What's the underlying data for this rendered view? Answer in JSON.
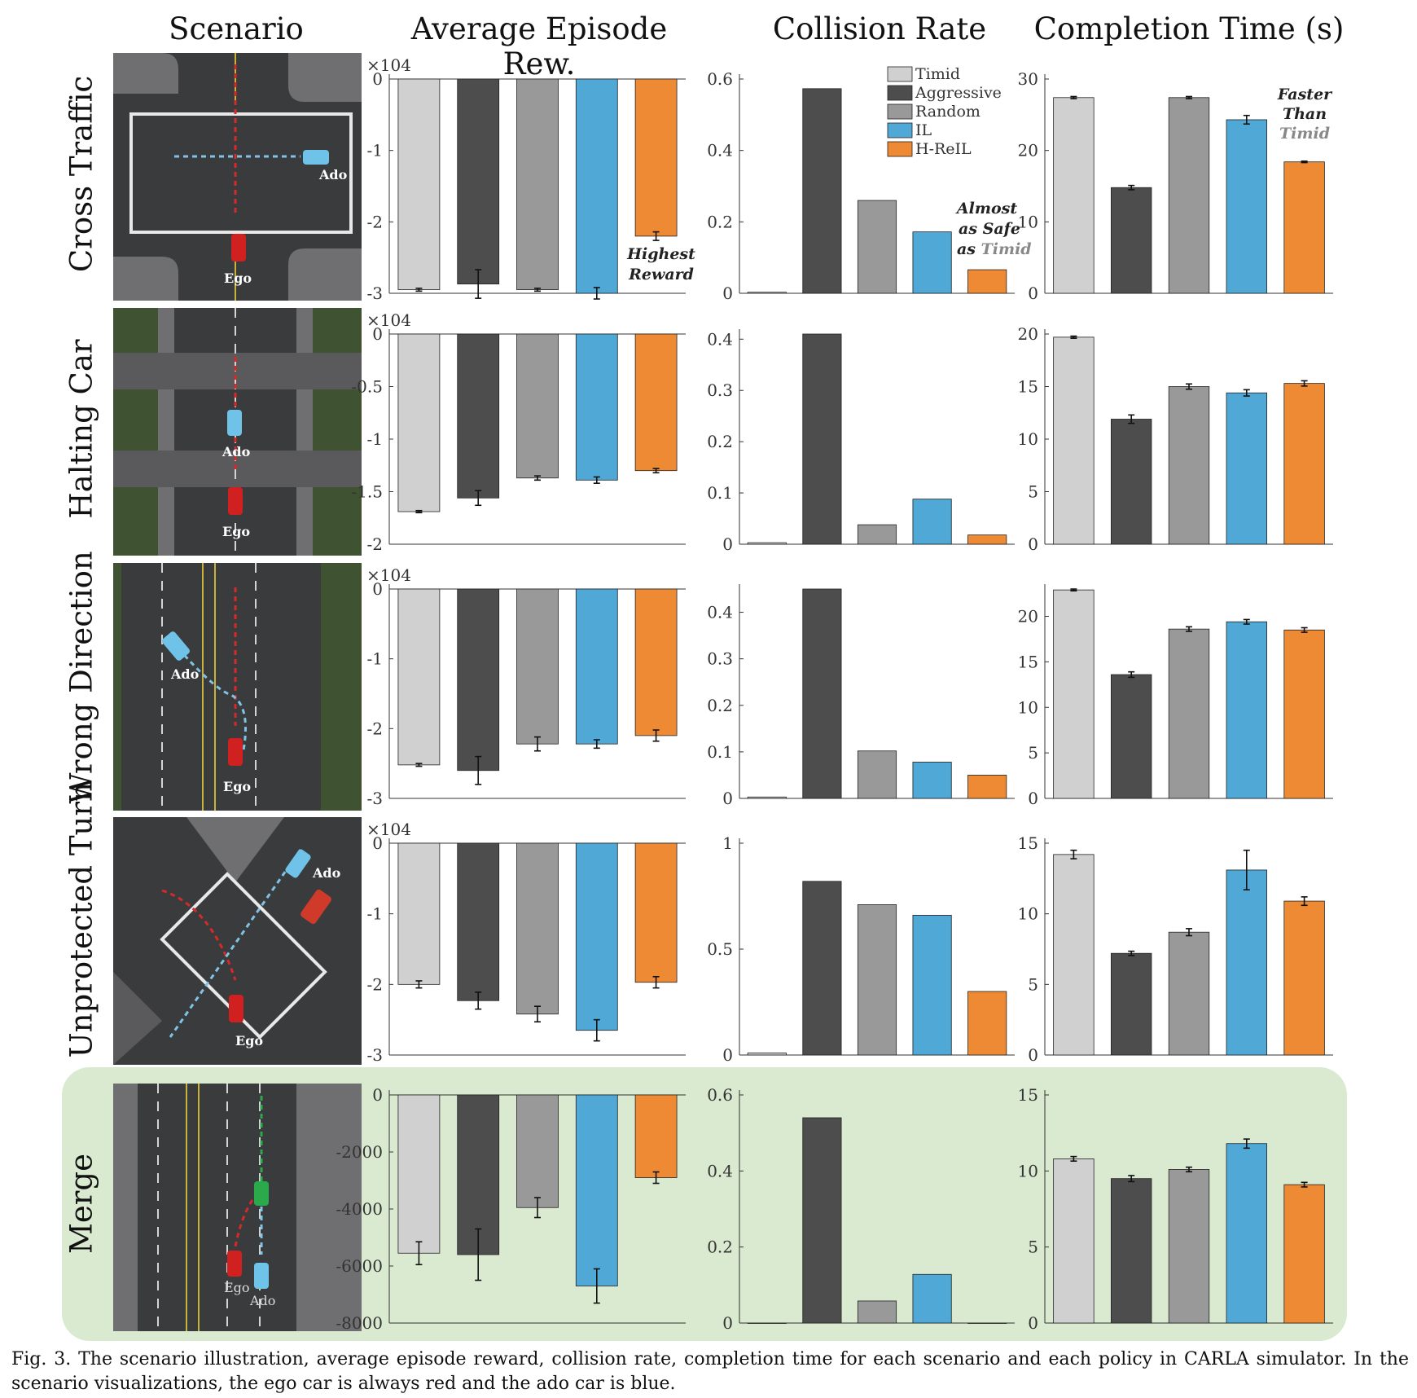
{
  "columns": [
    "Scenario",
    "Average Episode Rew.",
    "Collision Rate",
    "Completion Time (s)"
  ],
  "policies": [
    {
      "name": "Timid",
      "color": "#d0d0d0"
    },
    {
      "name": "Aggressive",
      "color": "#4d4d4d"
    },
    {
      "name": "Random",
      "color": "#999999"
    },
    {
      "name": "IL",
      "color": "#4fa8d5"
    },
    {
      "name": "H-ReIL",
      "color": "#ee8a33"
    }
  ],
  "scenarios": [
    {
      "name": "Cross Traffic",
      "labels": {
        "ego": "Ego",
        "ado": "Ado"
      },
      "annotations": {
        "reward": [
          "Highest",
          "Reward"
        ],
        "collision": [
          "Almost",
          "as Safe",
          "as ",
          "Timid"
        ],
        "time": [
          "Faster",
          "Than",
          "Timid"
        ]
      }
    },
    {
      "name": "Halting Car",
      "labels": {
        "ego": "Ego",
        "ado": "Ado"
      }
    },
    {
      "name": "Wrong Direction",
      "labels": {
        "ego": "Ego",
        "ado": "Ado"
      }
    },
    {
      "name": "Unprotected Turn",
      "labels": {
        "ego": "Ego",
        "ado": "Ado"
      }
    },
    {
      "name": "Merge",
      "labels": {
        "ego": "Ego",
        "ado": "Ado"
      }
    }
  ],
  "chart_data": [
    {
      "type": "bar",
      "scenario": "Cross Traffic",
      "metric": "Average Episode Rew.",
      "scale_label": "×10^4",
      "categories": [
        "Timid",
        "Aggressive",
        "Random",
        "IL",
        "H-ReIL"
      ],
      "values": [
        -2.95,
        -2.87,
        -2.95,
        -3.0,
        -2.2
      ],
      "errors": [
        0.02,
        0.2,
        0.02,
        0.08,
        0.06
      ],
      "ylim": [
        -3,
        0
      ],
      "yticks": [
        0,
        -1,
        -2,
        -3
      ]
    },
    {
      "type": "bar",
      "scenario": "Cross Traffic",
      "metric": "Collision Rate",
      "categories": [
        "Timid",
        "Aggressive",
        "Random",
        "IL",
        "H-ReIL"
      ],
      "values": [
        0.003,
        0.573,
        0.26,
        0.172,
        0.066
      ],
      "errors": [
        0,
        0,
        0,
        0,
        0
      ],
      "ylim": [
        0,
        0.6
      ],
      "yticks": [
        0,
        0.2,
        0.4,
        0.6
      ],
      "legend": "top-right"
    },
    {
      "type": "bar",
      "scenario": "Cross Traffic",
      "metric": "Completion Time (s)",
      "categories": [
        "Timid",
        "Aggressive",
        "Random",
        "IL",
        "H-ReIL"
      ],
      "values": [
        27.4,
        14.8,
        27.4,
        24.3,
        18.4
      ],
      "errors": [
        0.15,
        0.3,
        0.15,
        0.6,
        0.1
      ],
      "ylim": [
        0,
        30
      ],
      "yticks": [
        0,
        10,
        20,
        30
      ]
    },
    {
      "type": "bar",
      "scenario": "Halting Car",
      "metric": "Average Episode Rew.",
      "scale_label": "×10^4",
      "categories": [
        "Timid",
        "Aggressive",
        "Random",
        "IL",
        "H-ReIL"
      ],
      "values": [
        -1.69,
        -1.56,
        -1.37,
        -1.39,
        -1.3
      ],
      "errors": [
        0.01,
        0.07,
        0.02,
        0.03,
        0.02
      ],
      "ylim": [
        -2,
        0
      ],
      "yticks": [
        0,
        -0.5,
        -1,
        -1.5,
        -2
      ]
    },
    {
      "type": "bar",
      "scenario": "Halting Car",
      "metric": "Collision Rate",
      "categories": [
        "Timid",
        "Aggressive",
        "Random",
        "IL",
        "H-ReIL"
      ],
      "values": [
        0.003,
        0.41,
        0.038,
        0.088,
        0.018
      ],
      "errors": [
        0,
        0,
        0,
        0,
        0
      ],
      "ylim": [
        0,
        0.41
      ],
      "yticks": [
        0,
        0.1,
        0.2,
        0.3,
        0.4
      ]
    },
    {
      "type": "bar",
      "scenario": "Halting Car",
      "metric": "Completion Time (s)",
      "categories": [
        "Timid",
        "Aggressive",
        "Random",
        "IL",
        "H-ReIL"
      ],
      "values": [
        19.7,
        11.9,
        15.0,
        14.4,
        15.3
      ],
      "errors": [
        0.1,
        0.4,
        0.25,
        0.3,
        0.25
      ],
      "ylim": [
        0,
        20
      ],
      "yticks": [
        0,
        5,
        10,
        15,
        20
      ]
    },
    {
      "type": "bar",
      "scenario": "Wrong Direction",
      "metric": "Average Episode Rew.",
      "scale_label": "×10^4",
      "categories": [
        "Timid",
        "Aggressive",
        "Random",
        "IL",
        "H-ReIL"
      ],
      "values": [
        -2.52,
        -2.6,
        -2.22,
        -2.22,
        -2.1
      ],
      "errors": [
        0.02,
        0.2,
        0.1,
        0.06,
        0.08
      ],
      "ylim": [
        -3,
        0
      ],
      "yticks": [
        0,
        -1,
        -2,
        -3
      ]
    },
    {
      "type": "bar",
      "scenario": "Wrong Direction",
      "metric": "Collision Rate",
      "categories": [
        "Timid",
        "Aggressive",
        "Random",
        "IL",
        "H-ReIL"
      ],
      "values": [
        0.003,
        0.45,
        0.102,
        0.078,
        0.05
      ],
      "errors": [
        0,
        0,
        0,
        0,
        0
      ],
      "ylim": [
        0,
        0.45
      ],
      "yticks": [
        0,
        0.1,
        0.2,
        0.3,
        0.4
      ]
    },
    {
      "type": "bar",
      "scenario": "Wrong Direction",
      "metric": "Completion Time (s)",
      "categories": [
        "Timid",
        "Aggressive",
        "Random",
        "IL",
        "H-ReIL"
      ],
      "values": [
        22.9,
        13.6,
        18.6,
        19.4,
        18.5
      ],
      "errors": [
        0.1,
        0.3,
        0.25,
        0.25,
        0.25
      ],
      "ylim": [
        0,
        23
      ],
      "yticks": [
        0,
        5,
        10,
        15,
        20
      ]
    },
    {
      "type": "bar",
      "scenario": "Unprotected Turn",
      "metric": "Average Episode Rew.",
      "scale_label": "×10^4",
      "categories": [
        "Timid",
        "Aggressive",
        "Random",
        "IL",
        "H-ReIL"
      ],
      "values": [
        -2.0,
        -2.23,
        -2.42,
        -2.65,
        -1.97
      ],
      "errors": [
        0.05,
        0.12,
        0.11,
        0.15,
        0.08
      ],
      "ylim": [
        -3,
        0
      ],
      "yticks": [
        0,
        -1,
        -2,
        -3
      ]
    },
    {
      "type": "bar",
      "scenario": "Unprotected Turn",
      "metric": "Collision Rate",
      "categories": [
        "Timid",
        "Aggressive",
        "Random",
        "IL",
        "H-ReIL"
      ],
      "values": [
        0.01,
        0.82,
        0.71,
        0.66,
        0.3
      ],
      "errors": [
        0,
        0,
        0,
        0,
        0
      ],
      "ylim": [
        0,
        1
      ],
      "yticks": [
        0,
        0.5,
        1
      ]
    },
    {
      "type": "bar",
      "scenario": "Unprotected Turn",
      "metric": "Completion Time (s)",
      "categories": [
        "Timid",
        "Aggressive",
        "Random",
        "IL",
        "H-ReIL"
      ],
      "values": [
        14.2,
        7.2,
        8.7,
        13.1,
        10.9
      ],
      "errors": [
        0.3,
        0.15,
        0.25,
        1.4,
        0.3
      ],
      "ylim": [
        0,
        15
      ],
      "yticks": [
        0,
        5,
        10,
        15
      ]
    },
    {
      "type": "bar",
      "scenario": "Merge",
      "metric": "Average Episode Rew.",
      "categories": [
        "Timid",
        "Aggressive",
        "Random",
        "IL",
        "H-ReIL"
      ],
      "values": [
        -5550,
        -5600,
        -3950,
        -6700,
        -2900
      ],
      "errors": [
        400,
        900,
        350,
        600,
        200
      ],
      "ylim": [
        -8000,
        0
      ],
      "yticks": [
        0,
        -2000,
        -4000,
        -6000,
        -8000
      ]
    },
    {
      "type": "bar",
      "scenario": "Merge",
      "metric": "Collision Rate",
      "categories": [
        "Timid",
        "Aggressive",
        "Random",
        "IL",
        "H-ReIL"
      ],
      "values": [
        0,
        0.54,
        0.058,
        0.128,
        0
      ],
      "errors": [
        0,
        0,
        0,
        0,
        0
      ],
      "ylim": [
        0,
        0.6
      ],
      "yticks": [
        0,
        0.2,
        0.4,
        0.6
      ]
    },
    {
      "type": "bar",
      "scenario": "Merge",
      "metric": "Completion Time (s)",
      "categories": [
        "Timid",
        "Aggressive",
        "Random",
        "IL",
        "H-ReIL"
      ],
      "values": [
        10.8,
        9.5,
        10.1,
        11.8,
        9.1
      ],
      "errors": [
        0.15,
        0.2,
        0.15,
        0.3,
        0.15
      ],
      "ylim": [
        0,
        15
      ],
      "yticks": [
        0,
        5,
        10,
        15
      ]
    }
  ],
  "caption": "Fig. 3.   The scenario illustration, average episode reward, collision rate, completion time for each scenario and each policy in CARLA simulator. In the scenario visualizations, the ego car is always red and the ado car is blue."
}
